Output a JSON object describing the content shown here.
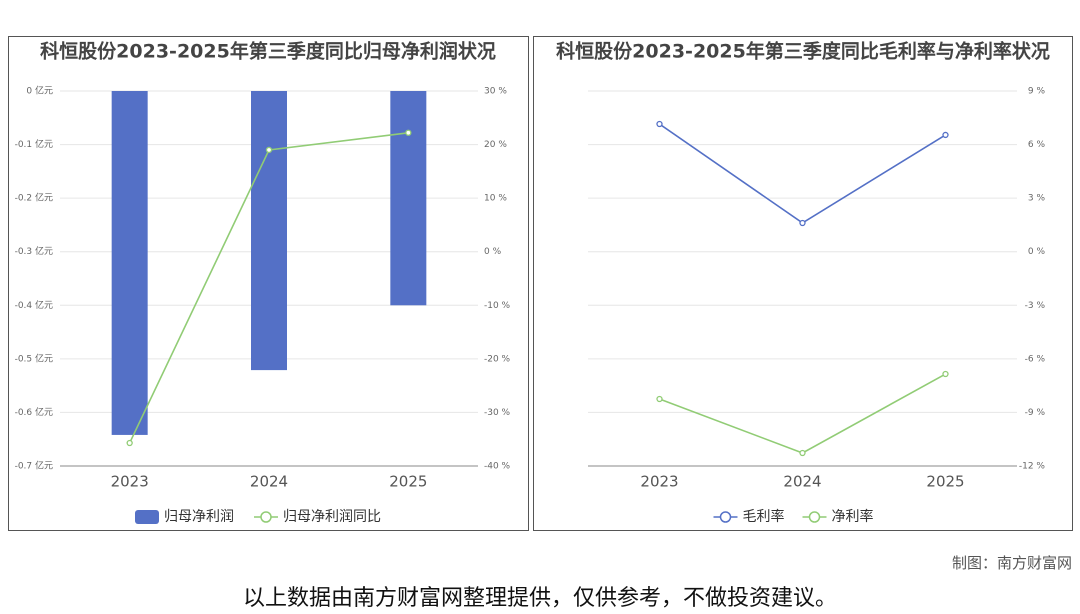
{
  "chart_data": [
    {
      "type": "bar",
      "title": "科恒股份2023-2025年第三季度同比归母净利润状况",
      "categories": [
        "2023",
        "2024",
        "2025"
      ],
      "series": [
        {
          "name": "归母净利润",
          "color": "#5470c6",
          "values": [
            -0.642,
            -0.521,
            -0.4
          ]
        },
        {
          "name": "归母净利润同比",
          "color": "#91cc75",
          "type": "line",
          "axis": "y2",
          "values": [
            -35.7,
            19,
            22.2
          ]
        }
      ],
      "ylim": [
        -0.7,
        0
      ],
      "yticks": [
        {
          "value": 0,
          "label": "0 亿元"
        },
        {
          "value": -0.1,
          "label": "-0.1 亿元"
        },
        {
          "value": -0.2,
          "label": "-0.2 亿元"
        },
        {
          "value": -0.3,
          "label": "-0.3 亿元"
        },
        {
          "value": -0.4,
          "label": "-0.4 亿元"
        },
        {
          "value": -0.5,
          "label": "-0.5 亿元"
        },
        {
          "value": -0.6,
          "label": "-0.6 亿元"
        },
        {
          "value": -0.7,
          "label": "-0.7 亿元"
        }
      ],
      "y2lim": [
        -40,
        30
      ],
      "y2ticks": [
        {
          "value": 30,
          "label": "30 %"
        },
        {
          "value": 20,
          "label": "20 %"
        },
        {
          "value": 10,
          "label": "10 %"
        },
        {
          "value": 0,
          "label": "0 %"
        },
        {
          "value": -10,
          "label": "-10 %"
        },
        {
          "value": -20,
          "label": "-20 %"
        },
        {
          "value": -30,
          "label": "-30 %"
        },
        {
          "value": -40,
          "label": "-40 %"
        }
      ],
      "grid": true,
      "legend": "bottom"
    },
    {
      "type": "line",
      "title": "科恒股份2023-2025年第三季度同比毛利率与净利率状况",
      "categories": [
        "2023",
        "2024",
        "2025"
      ],
      "series": [
        {
          "name": "毛利率",
          "color": "#5470c6",
          "axis": "y2",
          "values": [
            7.15,
            1.61,
            6.54
          ]
        },
        {
          "name": "净利率",
          "color": "#91cc75",
          "axis": "y2",
          "values": [
            -8.25,
            -11.27,
            -6.85
          ]
        }
      ],
      "y2lim": [
        -12,
        9
      ],
      "y2ticks": [
        {
          "value": 9,
          "label": "9 %"
        },
        {
          "value": 6,
          "label": "6 %"
        },
        {
          "value": 3,
          "label": "3 %"
        },
        {
          "value": 0,
          "label": "0 %"
        },
        {
          "value": -3,
          "label": "-3 %"
        },
        {
          "value": -6,
          "label": "-6 %"
        },
        {
          "value": -9,
          "label": "-9 %"
        },
        {
          "value": -12,
          "label": "-12 %"
        }
      ],
      "grid": true,
      "legend": "bottom"
    }
  ],
  "source": "制图：南方财富网",
  "disclaimer": "以上数据由南方财富网整理提供，仅供参考，不做投资建议。"
}
